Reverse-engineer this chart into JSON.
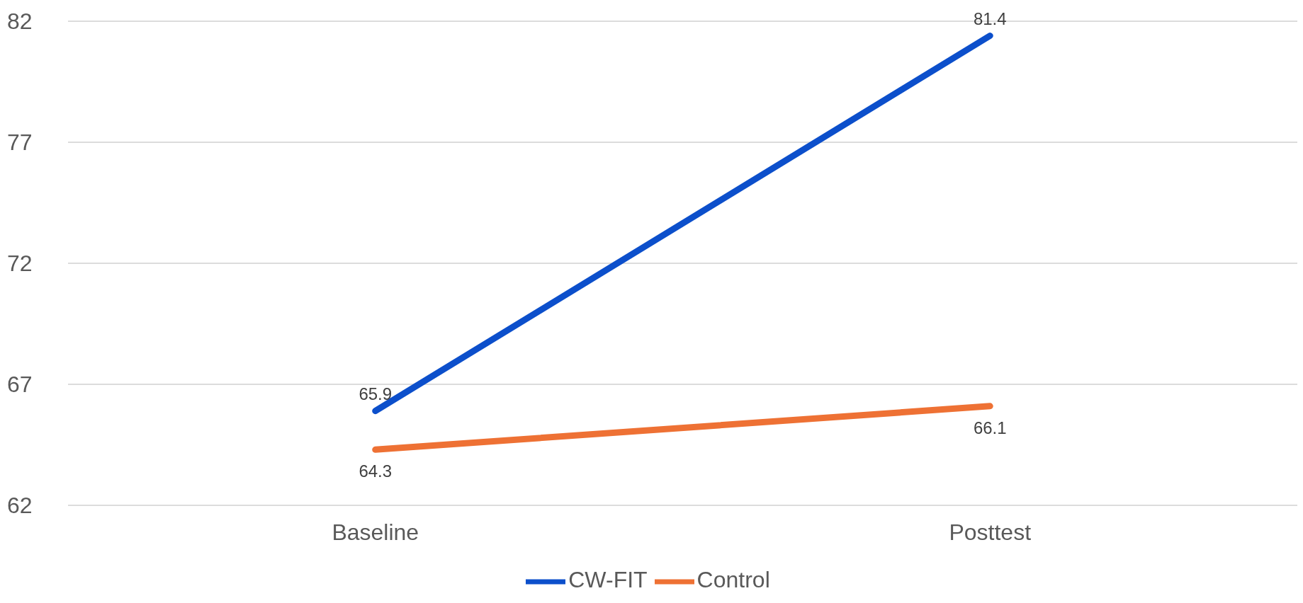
{
  "chart_data": {
    "type": "line",
    "categories": [
      "Baseline",
      "Posttest"
    ],
    "series": [
      {
        "name": "CW-FIT",
        "color": "#0c4fcb",
        "values": [
          65.9,
          81.4
        ]
      },
      {
        "name": "Control",
        "color": "#ee7134",
        "values": [
          64.3,
          66.1
        ]
      }
    ],
    "ylim": [
      62,
      82
    ],
    "yticks": [
      62,
      67,
      72,
      77,
      82
    ],
    "grid": "y",
    "legend": "bottom",
    "marker": "none",
    "line_style": "solid",
    "data_labels": true
  }
}
